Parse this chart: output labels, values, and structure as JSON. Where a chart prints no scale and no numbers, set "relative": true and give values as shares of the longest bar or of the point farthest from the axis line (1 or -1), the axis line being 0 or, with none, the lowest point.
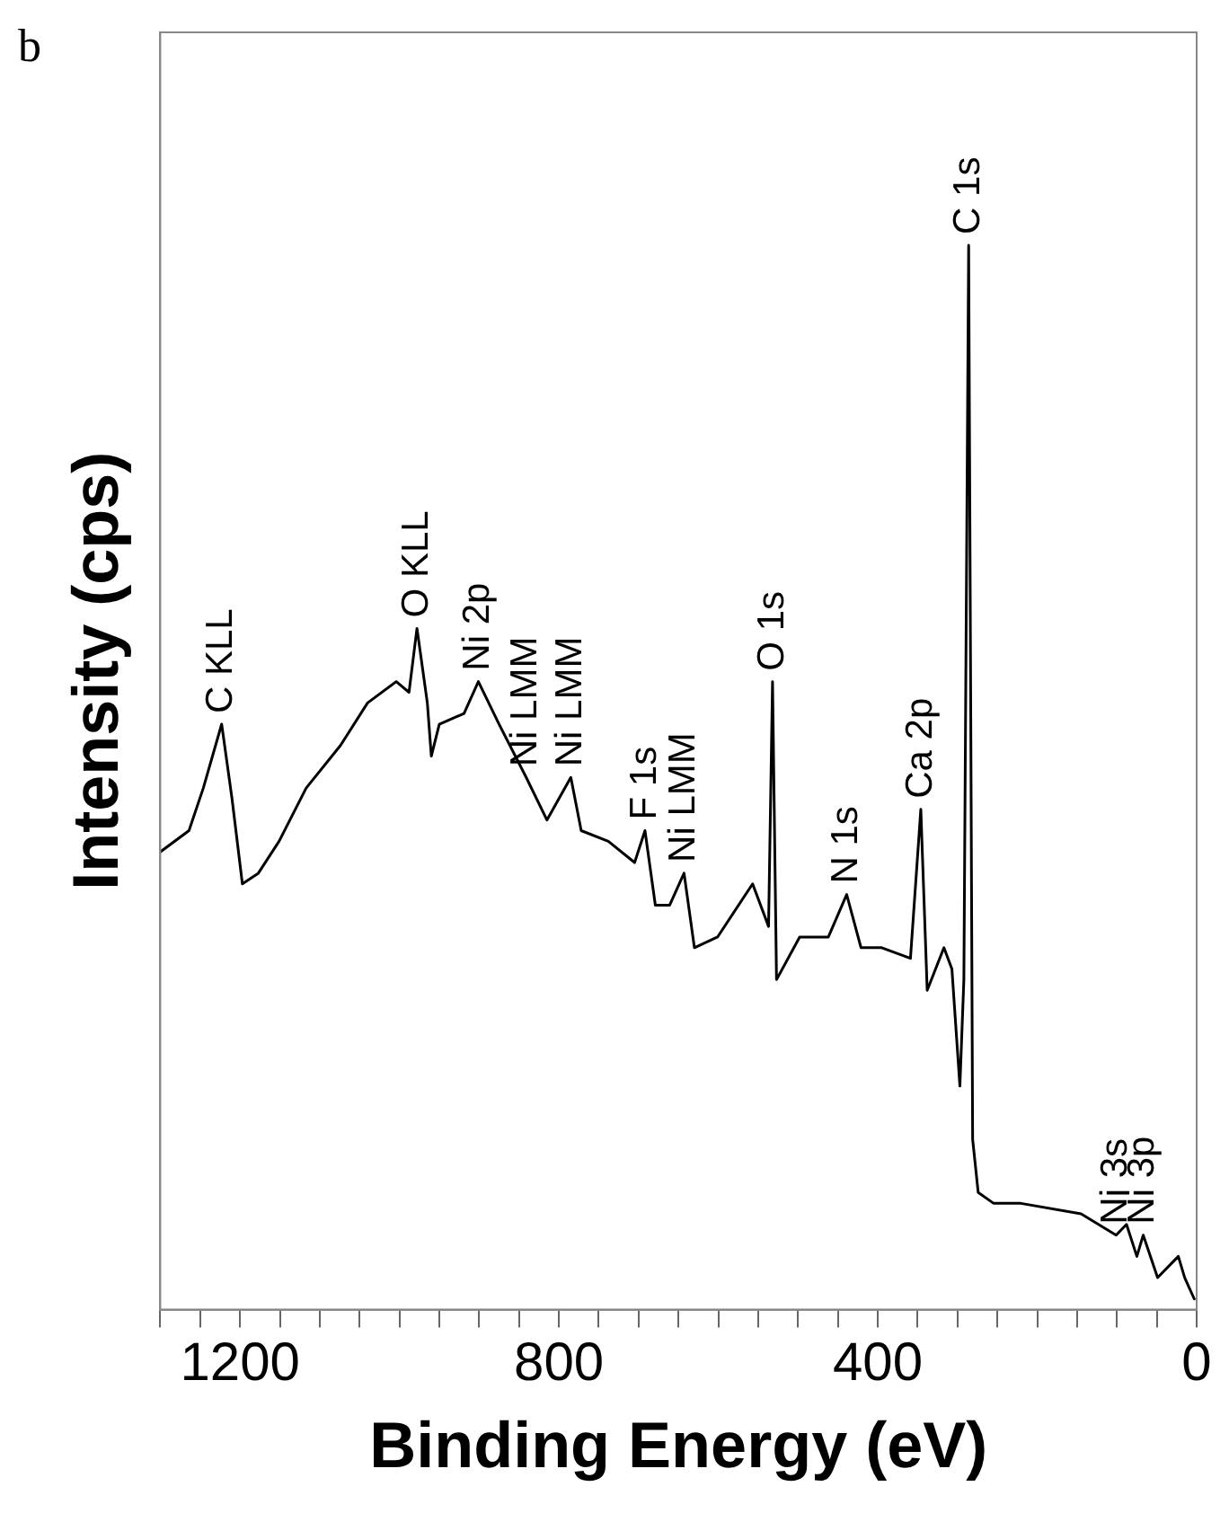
{
  "chart_data": {
    "type": "line",
    "relative": true,
    "xlabel": "Binding Energy (eV)",
    "ylabel": "Intensity (cps)",
    "xlim": [
      1300,
      0
    ],
    "xticks": [
      {
        "value": 1300,
        "label": null
      },
      {
        "value": 1250,
        "label": null
      },
      1200,
      {
        "value": 1150,
        "label": null
      },
      {
        "value": 1100,
        "label": null
      },
      {
        "value": 1050,
        "label": null
      },
      {
        "value": 1000,
        "label": null
      },
      {
        "value": 950,
        "label": null
      },
      {
        "value": 900,
        "label": null
      },
      {
        "value": 850,
        "label": null
      },
      800,
      {
        "value": 750,
        "label": null
      },
      {
        "value": 700,
        "label": null
      },
      {
        "value": 650,
        "label": null
      },
      {
        "value": 600,
        "label": null
      },
      {
        "value": 550,
        "label": null
      },
      {
        "value": 500,
        "label": null
      },
      {
        "value": 450,
        "label": null
      },
      400,
      {
        "value": 350,
        "label": null
      },
      {
        "value": 300,
        "label": null
      },
      {
        "value": 250,
        "label": null
      },
      {
        "value": 200,
        "label": null
      },
      {
        "value": 150,
        "label": null
      },
      {
        "value": 100,
        "label": null
      },
      {
        "value": 50,
        "label": null
      },
      0
    ],
    "grid": false,
    "legend": false,
    "marker": "none",
    "line_style": "solid",
    "series": [
      {
        "color": "#000000",
        "x": [
          1300,
          1264,
          1246,
          1223,
          1210,
          1197,
          1177,
          1151,
          1117,
          1074,
          1040,
          1004,
          988,
          978,
          965,
          960,
          950,
          919,
          901,
          875,
          841,
          815,
          785,
          772,
          738,
          705,
          692,
          679,
          661,
          643,
          630,
          601,
          557,
          537,
          532,
          527,
          498,
          462,
          439,
          421,
          395,
          359,
          346,
          338,
          317,
          307,
          297,
          292,
          286,
          281,
          274,
          255,
          222,
          145,
          101,
          88,
          75,
          67,
          49,
          23,
          15,
          3
        ],
        "values": [
          0.43,
          0.45,
          0.49,
          0.55,
          0.48,
          0.4,
          0.41,
          0.44,
          0.49,
          0.53,
          0.57,
          0.59,
          0.58,
          0.64,
          0.57,
          0.52,
          0.55,
          0.56,
          0.59,
          0.55,
          0.5,
          0.46,
          0.5,
          0.45,
          0.44,
          0.42,
          0.45,
          0.38,
          0.38,
          0.41,
          0.34,
          0.35,
          0.4,
          0.36,
          0.59,
          0.31,
          0.35,
          0.35,
          0.39,
          0.34,
          0.34,
          0.33,
          0.47,
          0.3,
          0.34,
          0.32,
          0.21,
          0.31,
          1.0,
          0.16,
          0.11,
          0.1,
          0.1,
          0.09,
          0.07,
          0.08,
          0.05,
          0.07,
          0.03,
          0.05,
          0.03,
          0.01
        ]
      }
    ],
    "annotations": [
      "b",
      {
        "text": "C KLL",
        "x": 1223,
        "y": 0.55
      },
      {
        "text": "O KLL",
        "x": 978,
        "y": 0.64
      },
      {
        "text": "Ni 2p",
        "x": 901,
        "y": 0.59
      },
      {
        "text": "Ni LMM",
        "x": 841,
        "y": 0.5
      },
      {
        "text": "Ni LMM",
        "x": 785,
        "y": 0.5
      },
      {
        "text": "F 1s",
        "x": 692,
        "y": 0.45
      },
      {
        "text": "Ni LMM",
        "x": 643,
        "y": 0.41
      },
      {
        "text": "O 1s",
        "x": 532,
        "y": 0.59
      },
      {
        "text": "N 1s",
        "x": 439,
        "y": 0.39
      },
      {
        "text": "Ca 2p",
        "x": 346,
        "y": 0.47
      },
      {
        "text": "C 1s",
        "x": 286,
        "y": 1.0
      },
      {
        "text": "Ni 3s",
        "x": 101,
        "y": 0.07
      },
      {
        "text": "Ni 3p",
        "x": 67,
        "y": 0.07
      }
    ]
  }
}
